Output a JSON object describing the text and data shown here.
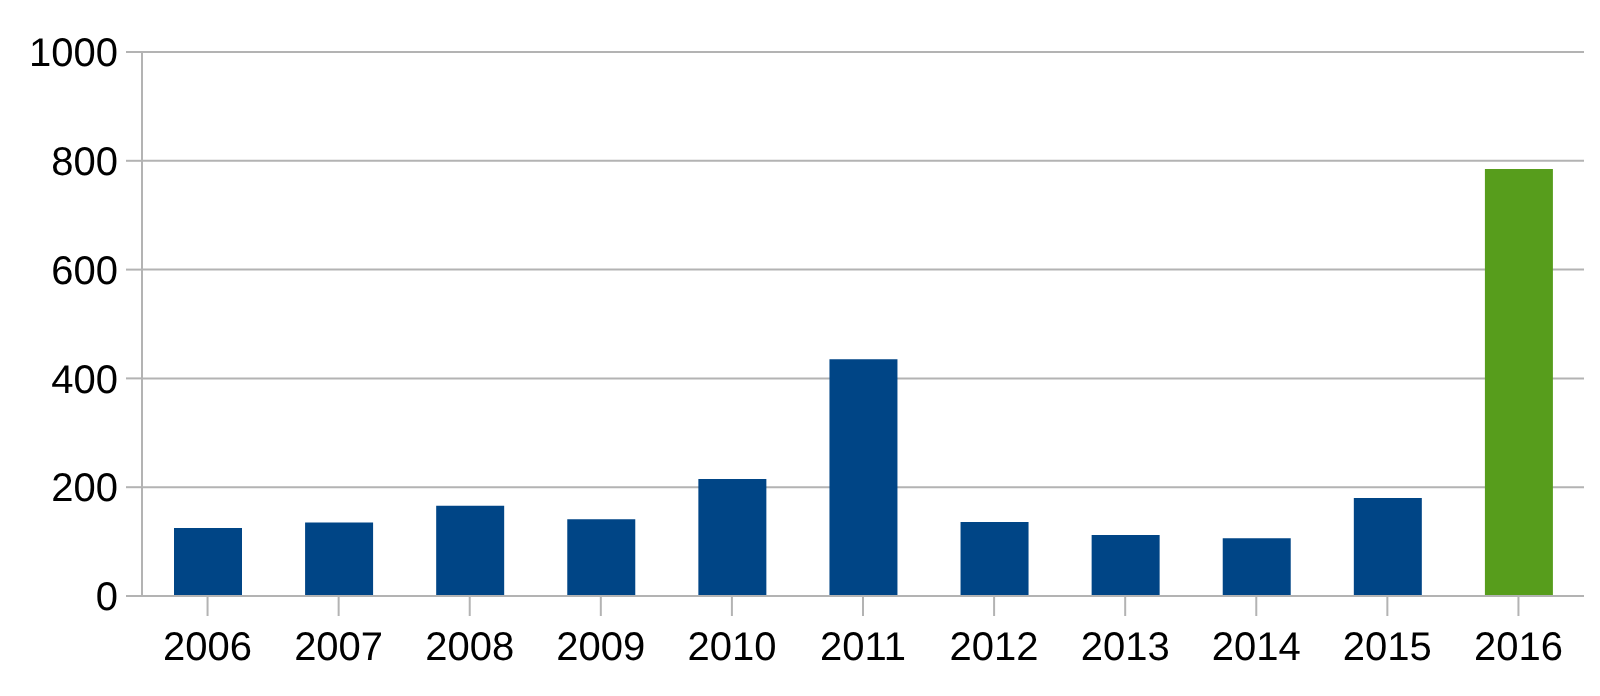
{
  "chart_data": {
    "type": "bar",
    "categories": [
      "2006",
      "2007",
      "2008",
      "2009",
      "2010",
      "2011",
      "2012",
      "2013",
      "2014",
      "2015",
      "2016"
    ],
    "values": [
      125,
      135,
      166,
      141,
      215,
      435,
      136,
      112,
      106,
      180,
      785
    ],
    "colors": [
      "#004586",
      "#004586",
      "#004586",
      "#004586",
      "#004586",
      "#004586",
      "#004586",
      "#004586",
      "#004586",
      "#004586",
      "#579d1c"
    ],
    "ylim": [
      0,
      1000
    ],
    "yticks": [
      0,
      200,
      400,
      600,
      800,
      1000
    ],
    "grid": "y"
  }
}
